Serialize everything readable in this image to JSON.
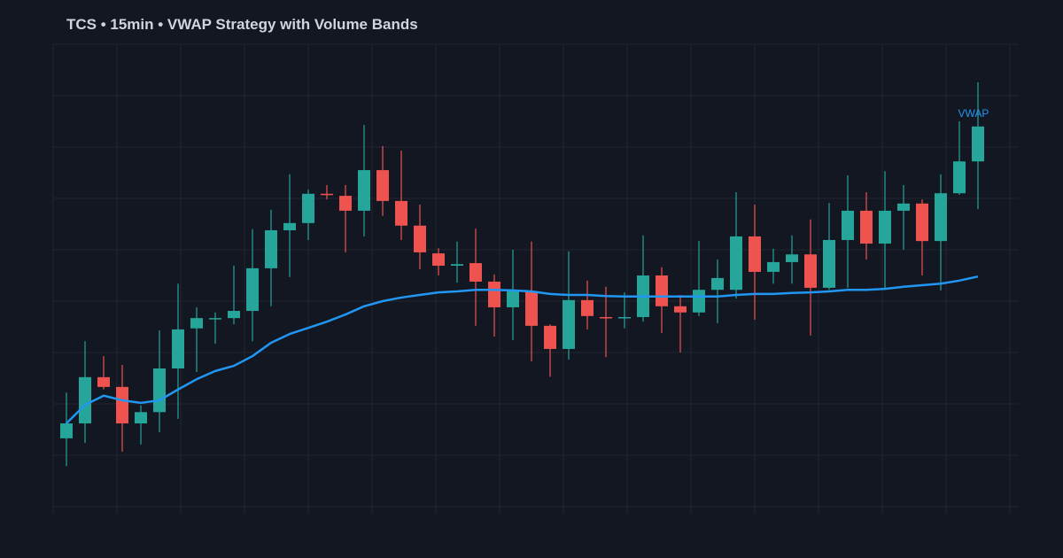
{
  "chart_data": {
    "type": "candlestick",
    "title": "TCS • 15min • VWAP Strategy with Volume Bands",
    "xlabel": "",
    "ylabel": "",
    "grid": true,
    "ylim": [
      0,
      90
    ],
    "colors": {
      "up": "#26a69a",
      "down": "#ef5350",
      "vwap": "#2196f3",
      "background": "#131722",
      "grid": "#1f2430"
    },
    "ohlc": [
      [
        13.3,
        22.2,
        7.9,
        16.2
      ],
      [
        16.2,
        32.2,
        12.4,
        25.2
      ],
      [
        25.2,
        29.3,
        22.8,
        23.3
      ],
      [
        23.3,
        27.6,
        10.7,
        16.2
      ],
      [
        16.2,
        19.7,
        12.1,
        18.4
      ],
      [
        18.4,
        34.3,
        14.5,
        26.9
      ],
      [
        26.9,
        43.4,
        17.1,
        34.5
      ],
      [
        34.7,
        38.8,
        26.2,
        36.7
      ],
      [
        36.6,
        37.8,
        31.7,
        36.7
      ],
      [
        36.7,
        46.9,
        35.5,
        38.1
      ],
      [
        38.1,
        54.0,
        32.2,
        46.4
      ],
      [
        46.4,
        57.8,
        39.0,
        53.8
      ],
      [
        53.8,
        64.7,
        44.7,
        55.2
      ],
      [
        55.2,
        61.7,
        51.9,
        60.9
      ],
      [
        60.9,
        62.6,
        59.8,
        60.7
      ],
      [
        60.5,
        62.6,
        49.5,
        57.6
      ],
      [
        57.6,
        74.3,
        52.6,
        65.5
      ],
      [
        65.5,
        70.2,
        56.6,
        59.5
      ],
      [
        59.5,
        69.3,
        51.9,
        54.7
      ],
      [
        54.7,
        58.8,
        46.2,
        49.5
      ],
      [
        49.3,
        50.3,
        45.0,
        46.9
      ],
      [
        46.9,
        51.6,
        43.6,
        47.2
      ],
      [
        47.4,
        54.1,
        35.2,
        43.8
      ],
      [
        43.8,
        45.2,
        33.1,
        38.8
      ],
      [
        38.8,
        50.0,
        32.4,
        41.9
      ],
      [
        41.9,
        51.6,
        28.3,
        35.2
      ],
      [
        35.2,
        35.5,
        25.3,
        30.7
      ],
      [
        30.7,
        49.7,
        28.6,
        40.2
      ],
      [
        40.2,
        44.0,
        34.5,
        37.1
      ],
      [
        36.9,
        42.8,
        29.1,
        36.7
      ],
      [
        36.7,
        41.7,
        34.7,
        36.9
      ],
      [
        36.9,
        52.8,
        36.0,
        45.0
      ],
      [
        45.0,
        46.6,
        33.8,
        39.0
      ],
      [
        39.0,
        41.2,
        30.0,
        37.8
      ],
      [
        37.8,
        51.7,
        37.1,
        42.2
      ],
      [
        42.2,
        48.1,
        35.7,
        44.5
      ],
      [
        42.2,
        61.2,
        40.5,
        52.6
      ],
      [
        52.6,
        58.8,
        36.4,
        45.7
      ],
      [
        45.7,
        50.2,
        43.4,
        47.6
      ],
      [
        47.6,
        52.8,
        43.4,
        49.1
      ],
      [
        49.1,
        55.9,
        33.3,
        42.6
      ],
      [
        42.6,
        59.1,
        42.2,
        51.9
      ],
      [
        51.9,
        64.5,
        42.6,
        57.6
      ],
      [
        57.6,
        61.2,
        48.1,
        51.2
      ],
      [
        51.2,
        65.3,
        42.2,
        57.6
      ],
      [
        57.6,
        62.6,
        50.0,
        59.0
      ],
      [
        59.0,
        59.8,
        45.0,
        51.7
      ],
      [
        51.7,
        64.7,
        42.1,
        61.0
      ],
      [
        61.0,
        75.0,
        60.7,
        67.2
      ],
      [
        67.2,
        82.6,
        57.9,
        74.0
      ]
    ],
    "series": [
      {
        "name": "VWAP",
        "values": [
          16.2,
          19.8,
          21.6,
          20.7,
          20.2,
          20.7,
          22.8,
          24.8,
          26.4,
          27.4,
          29.3,
          31.9,
          33.6,
          34.8,
          36.0,
          37.4,
          39.0,
          40.0,
          40.7,
          41.2,
          41.7,
          41.9,
          42.2,
          42.2,
          42.1,
          41.9,
          41.4,
          41.2,
          41.2,
          41.0,
          40.9,
          40.9,
          40.9,
          40.9,
          40.9,
          40.9,
          41.2,
          41.4,
          41.4,
          41.6,
          41.7,
          41.9,
          42.2,
          42.2,
          42.4,
          42.8,
          43.1,
          43.4,
          44.0,
          44.8
        ]
      }
    ]
  }
}
